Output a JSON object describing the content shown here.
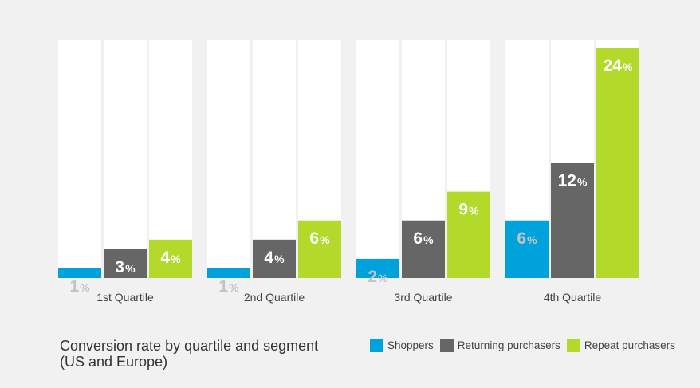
{
  "chart_data": {
    "type": "bar",
    "title": "Conversion rate by quartile and segment (US and Europe)",
    "title_lines": [
      "Conversion rate by quartile and segment",
      "(US and Europe)"
    ],
    "categories": [
      "1st Quartile",
      "2nd Quartile",
      "3rd Quartile",
      "4th Quartile"
    ],
    "series": [
      {
        "name": "Shoppers",
        "values": [
          1,
          1,
          2,
          6
        ],
        "color": "#00a2db",
        "label_color": "#c4c4c4"
      },
      {
        "name": "Returning purchasers",
        "values": [
          3,
          4,
          6,
          12
        ],
        "color": "#666666",
        "label_color": "#ffffff"
      },
      {
        "name": "Repeat purchasers",
        "values": [
          4,
          6,
          9,
          24
        ],
        "color": "#b3d92a",
        "label_color": "#ffffff"
      }
    ],
    "value_suffix": "%",
    "xlabel": "",
    "ylabel": "",
    "ylim": [
      0,
      24
    ],
    "legend_position": "bottom-right",
    "grid": false,
    "track_color": "#ffffff"
  }
}
